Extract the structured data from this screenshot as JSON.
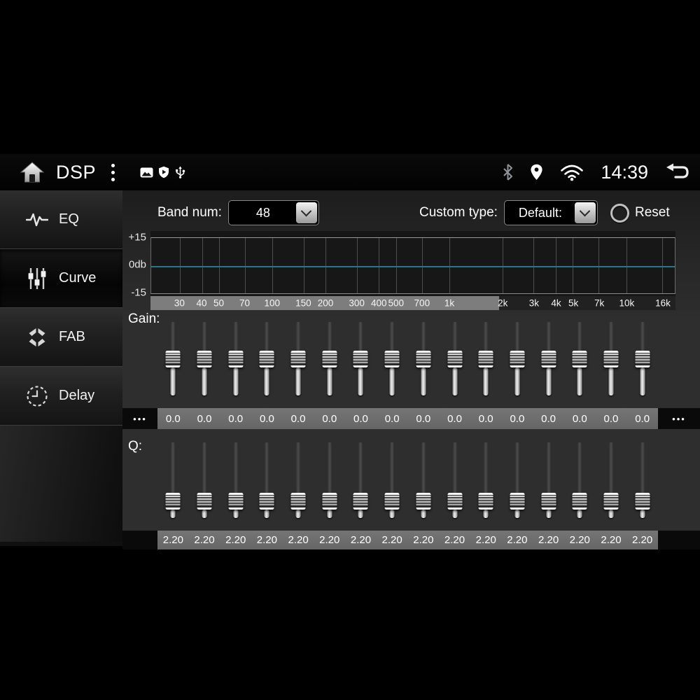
{
  "status_bar": {
    "title": "DSP",
    "time": "14:39",
    "left_icons": [
      "home-icon",
      "menu-kebab-icon",
      "image-icon",
      "shield-icon",
      "usb-icon"
    ],
    "right_icons": [
      "bluetooth-icon",
      "location-icon",
      "wifi-icon",
      "back-icon"
    ]
  },
  "sidebar": {
    "items": [
      {
        "id": "eq",
        "label": "EQ",
        "active": false
      },
      {
        "id": "curve",
        "label": "Curve",
        "active": true
      },
      {
        "id": "fab",
        "label": "FAB",
        "active": false
      },
      {
        "id": "delay",
        "label": "Delay",
        "active": false
      }
    ]
  },
  "controls": {
    "band_num": {
      "label": "Band num:",
      "value": "48"
    },
    "custom_type": {
      "label": "Custom type:",
      "value": "Default:"
    },
    "reset_label": "Reset"
  },
  "graph": {
    "y_axis_labels": [
      "+15",
      "0db",
      "-15"
    ],
    "y_range_db": [
      -15,
      15
    ],
    "curve_value_db": 0,
    "freq_axis_log_range": [
      20.6,
      18840
    ],
    "freq_ticks": [
      {
        "label": "30",
        "freq": 30
      },
      {
        "label": "40",
        "freq": 40
      },
      {
        "label": "50",
        "freq": 50
      },
      {
        "label": "70",
        "freq": 70
      },
      {
        "label": "100",
        "freq": 100
      },
      {
        "label": "150",
        "freq": 150
      },
      {
        "label": "200",
        "freq": 200
      },
      {
        "label": "300",
        "freq": 300
      },
      {
        "label": "400",
        "freq": 400
      },
      {
        "label": "500",
        "freq": 500
      },
      {
        "label": "700",
        "freq": 700
      },
      {
        "label": "1k",
        "freq": 1000
      },
      {
        "label": "2k",
        "freq": 2000
      },
      {
        "label": "3k",
        "freq": 3000
      },
      {
        "label": "4k",
        "freq": 4000
      },
      {
        "label": "5k",
        "freq": 5000
      },
      {
        "label": "7k",
        "freq": 7000
      },
      {
        "label": "10k",
        "freq": 10000
      },
      {
        "label": "16k",
        "freq": 16000
      }
    ],
    "visible_range_split_pct": 66.4
  },
  "gain": {
    "label": "Gain:",
    "min": -15,
    "max": 15,
    "values": [
      0,
      0,
      0,
      0,
      0,
      0,
      0,
      0,
      0,
      0,
      0,
      0,
      0,
      0,
      0,
      0
    ],
    "display_values": [
      "0.0",
      "0.0",
      "0.0",
      "0.0",
      "0.0",
      "0.0",
      "0.0",
      "0.0",
      "0.0",
      "0.0",
      "0.0",
      "0.0",
      "0.0",
      "0.0",
      "0.0",
      "0.0"
    ],
    "more_indicator": "•••",
    "has_more": true
  },
  "q": {
    "label": "Q:",
    "min": 0,
    "max": 10,
    "values": [
      2.2,
      2.2,
      2.2,
      2.2,
      2.2,
      2.2,
      2.2,
      2.2,
      2.2,
      2.2,
      2.2,
      2.2,
      2.2,
      2.2,
      2.2,
      2.2
    ],
    "display_values": [
      "2.20",
      "2.20",
      "2.20",
      "2.20",
      "2.20",
      "2.20",
      "2.20",
      "2.20",
      "2.20",
      "2.20",
      "2.20",
      "2.20",
      "2.20",
      "2.20",
      "2.20",
      "2.20"
    ],
    "has_more": false
  }
}
